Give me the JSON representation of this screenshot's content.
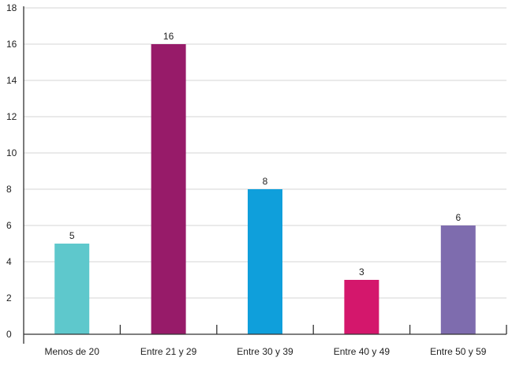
{
  "chart_data": {
    "type": "bar",
    "title": "",
    "xlabel": "",
    "ylabel": "",
    "categories": [
      "Menos de 20",
      "Entre 21 y 29",
      "Entre 30 y 39",
      "Entre 40 y 49",
      "Entre 50 y 59"
    ],
    "values": [
      5,
      16,
      8,
      3,
      6
    ],
    "colors": [
      "#5ec8cc",
      "#971b69",
      "#0f9fdb",
      "#d4176c",
      "#7e6cae"
    ],
    "ylim": [
      0,
      18
    ],
    "yticks": [
      0,
      2,
      4,
      6,
      8,
      10,
      12,
      14,
      16,
      18
    ],
    "grid": true,
    "legend": "none"
  }
}
